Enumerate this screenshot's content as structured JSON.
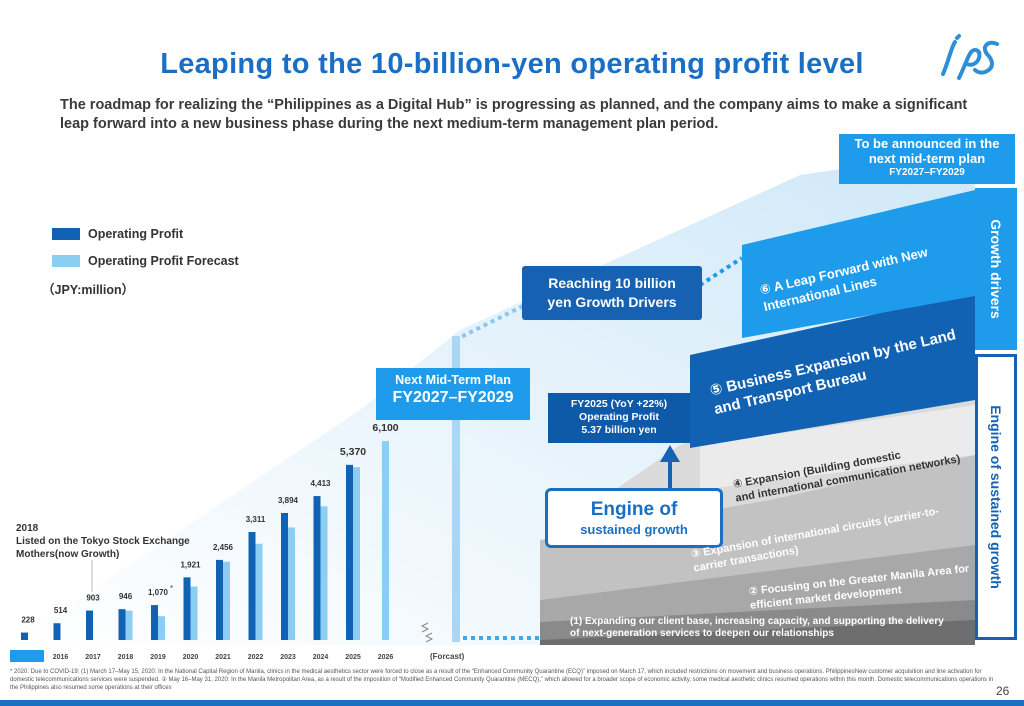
{
  "header": {
    "title": "Leaping to the 10-billion-yen operating profit level",
    "subtitle": "The roadmap for realizing the “Philippines as a Digital Hub” is progressing as planned, and the company aims to make a significant leap forward into a new business phase during the next medium-term management plan period."
  },
  "legend": {
    "actual": "Operating Profit",
    "forecast": "Operating Profit Forecast",
    "unit": "（JPY:million）"
  },
  "colors": {
    "actual": "#1262b3",
    "forecast": "#8ccdf2",
    "accent": "#1a6fc4",
    "light_blue": "#1e9bea"
  },
  "chart_data": {
    "type": "bar",
    "categories": [
      "FY2015",
      "2016",
      "2017",
      "2018",
      "2019",
      "2020",
      "2021",
      "2022",
      "2023",
      "2024",
      "2025",
      "2026"
    ],
    "series": [
      {
        "name": "Operating Profit",
        "values": [
          228,
          514,
          903,
          946,
          1070,
          1921,
          2456,
          3311,
          3894,
          4413,
          5370,
          null
        ]
      },
      {
        "name": "Operating Profit Forecast",
        "values": [
          null,
          null,
          null,
          900,
          730,
          1640,
          2400,
          2950,
          3450,
          4100,
          5300,
          6100
        ]
      }
    ],
    "data_labels": [
      "228",
      "514",
      "903",
      "946",
      "1,070",
      "1,921",
      "2,456",
      "3,311",
      "3,894",
      "4,413",
      "5,370",
      "6,100"
    ],
    "label_note_2019": "*",
    "x_suffix_label": "(Forcast)",
    "ylim": [
      0,
      6500
    ]
  },
  "annotations": {
    "listing_year": "2018",
    "listing_text_1": "Listed on the Tokyo Stock Exchange",
    "listing_text_2": "Mothers(now Growth)",
    "next_plan_line1": "Next Mid-Term Plan",
    "next_plan_line2": "FY2027–FY2029",
    "reach_line1": "Reaching 10 billion",
    "reach_line2": "yen Growth Drivers",
    "fy2025_line1": "FY2025 (YoY +22%)",
    "fy2025_line2": "Operating Profit",
    "fy2025_line3": "5.37 billion yen",
    "engine_line1": "Engine of",
    "engine_line2": "sustained growth",
    "announce_line1": "To be announced in the",
    "announce_line2": "next mid-term plan",
    "announce_line3": "FY2027–FY2029"
  },
  "steps": {
    "s1_line1": "(1) Expanding our client base, increasing capacity, and supporting the delivery",
    "s1_line2": "of next-generation services to deepen our relationships",
    "s2_line1": "② Focusing on the Greater Manila Area for",
    "s2_line2": "efficient market development",
    "s3_line1": "③ Expansion of international circuits (carrier-to-",
    "s3_line2": "carrier transactions)",
    "s4_line1": "④ Expansion (Building domestic",
    "s4_line2": "and international communication networks)",
    "s5_line1": "⑤ Business Expansion by the Land",
    "s5_line2": "and Transport Bureau",
    "s6_line1": "⑥ A Leap Forward with New",
    "s6_line2": "International Lines"
  },
  "side": {
    "growth": "Growth drivers",
    "engine": "Engine of sustained growth"
  },
  "footnote": "* 2020: Due to COVID-19: (1) March 17–May 15, 2020: In the National Capital Region of Manila, clinics in the medical aesthetics sector were forced to close as a result of the “Enhanced Community Quarantine (ECQ)” imposed on March 17, which included restrictions on movement and business operations. PhilippinesNew customer acquisition and line activation for domestic telecommunications services were suspended. ② May 16–May 31, 2020: In the Manila Metropolitan Area, as a result of the imposition of “Modified Enhanced Community Quarantine (MECQ),” which allowed for a broader scope of economic activity, some medical aesthetic clinics resumed operations within this month. Domestic telecommunications operations in the Philippines also resumed some operations at their offices",
  "page_number": "26"
}
